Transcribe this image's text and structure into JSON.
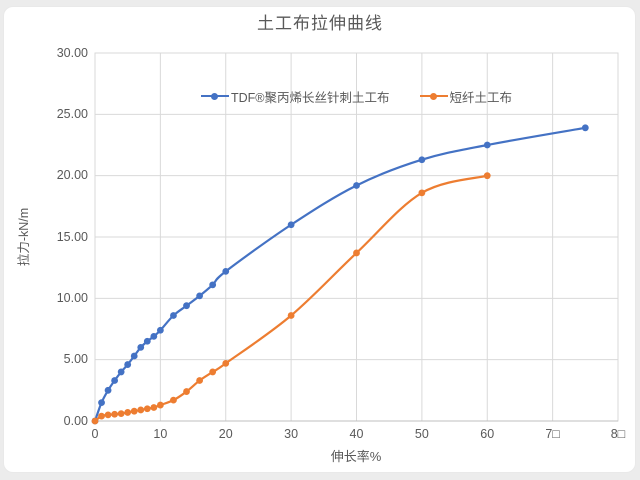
{
  "title": "土工布拉伸曲线",
  "chart_data": {
    "type": "line",
    "title": "土工布拉伸曲线",
    "xlabel": "伸长率%",
    "ylabel": "拉力-kN/m",
    "xlim": [
      0,
      80
    ],
    "ylim": [
      0,
      30
    ],
    "grid": true,
    "legend_position": "top-inside-center",
    "x_tick_values": [
      0,
      10,
      20,
      30,
      40,
      50,
      60,
      70,
      80
    ],
    "x_tick_labels": [
      "0",
      "10",
      "20",
      "30",
      "40",
      "50",
      "60",
      "7□",
      "8□"
    ],
    "y_tick_values": [
      0,
      5,
      10,
      15,
      20,
      25,
      30
    ],
    "y_tick_labels": [
      "0.00",
      "5.00",
      "10.00",
      "15.00",
      "20.00",
      "25.00",
      "30.00"
    ],
    "series": [
      {
        "name": "TDF®聚丙烯长丝针刺土工布",
        "color": "#4472C4",
        "x": [
          0,
          1,
          2,
          3,
          4,
          5,
          6,
          7,
          8,
          9,
          10,
          12,
          14,
          16,
          18,
          20,
          30,
          40,
          50,
          60,
          75
        ],
        "y": [
          0,
          1.5,
          2.5,
          3.3,
          4.0,
          4.6,
          5.3,
          6.0,
          6.5,
          6.9,
          7.4,
          8.6,
          9.4,
          10.2,
          11.1,
          12.2,
          16.0,
          19.2,
          21.3,
          22.5,
          23.9
        ]
      },
      {
        "name": "短纤土工布",
        "color": "#ED7D31",
        "x": [
          0,
          1,
          2,
          3,
          4,
          5,
          6,
          7,
          8,
          9,
          10,
          12,
          14,
          16,
          18,
          20,
          30,
          40,
          50,
          60
        ],
        "y": [
          0,
          0.4,
          0.5,
          0.55,
          0.6,
          0.7,
          0.8,
          0.9,
          1.0,
          1.1,
          1.3,
          1.7,
          2.4,
          3.3,
          4.0,
          4.7,
          8.6,
          13.7,
          18.6,
          20.0
        ]
      }
    ]
  },
  "colors": {
    "grid": "#D9D9D9",
    "axis_line": "#BFBFBF",
    "text": "#595959",
    "page_background": "#ECECEC",
    "card_background": "#FFFFFF"
  }
}
